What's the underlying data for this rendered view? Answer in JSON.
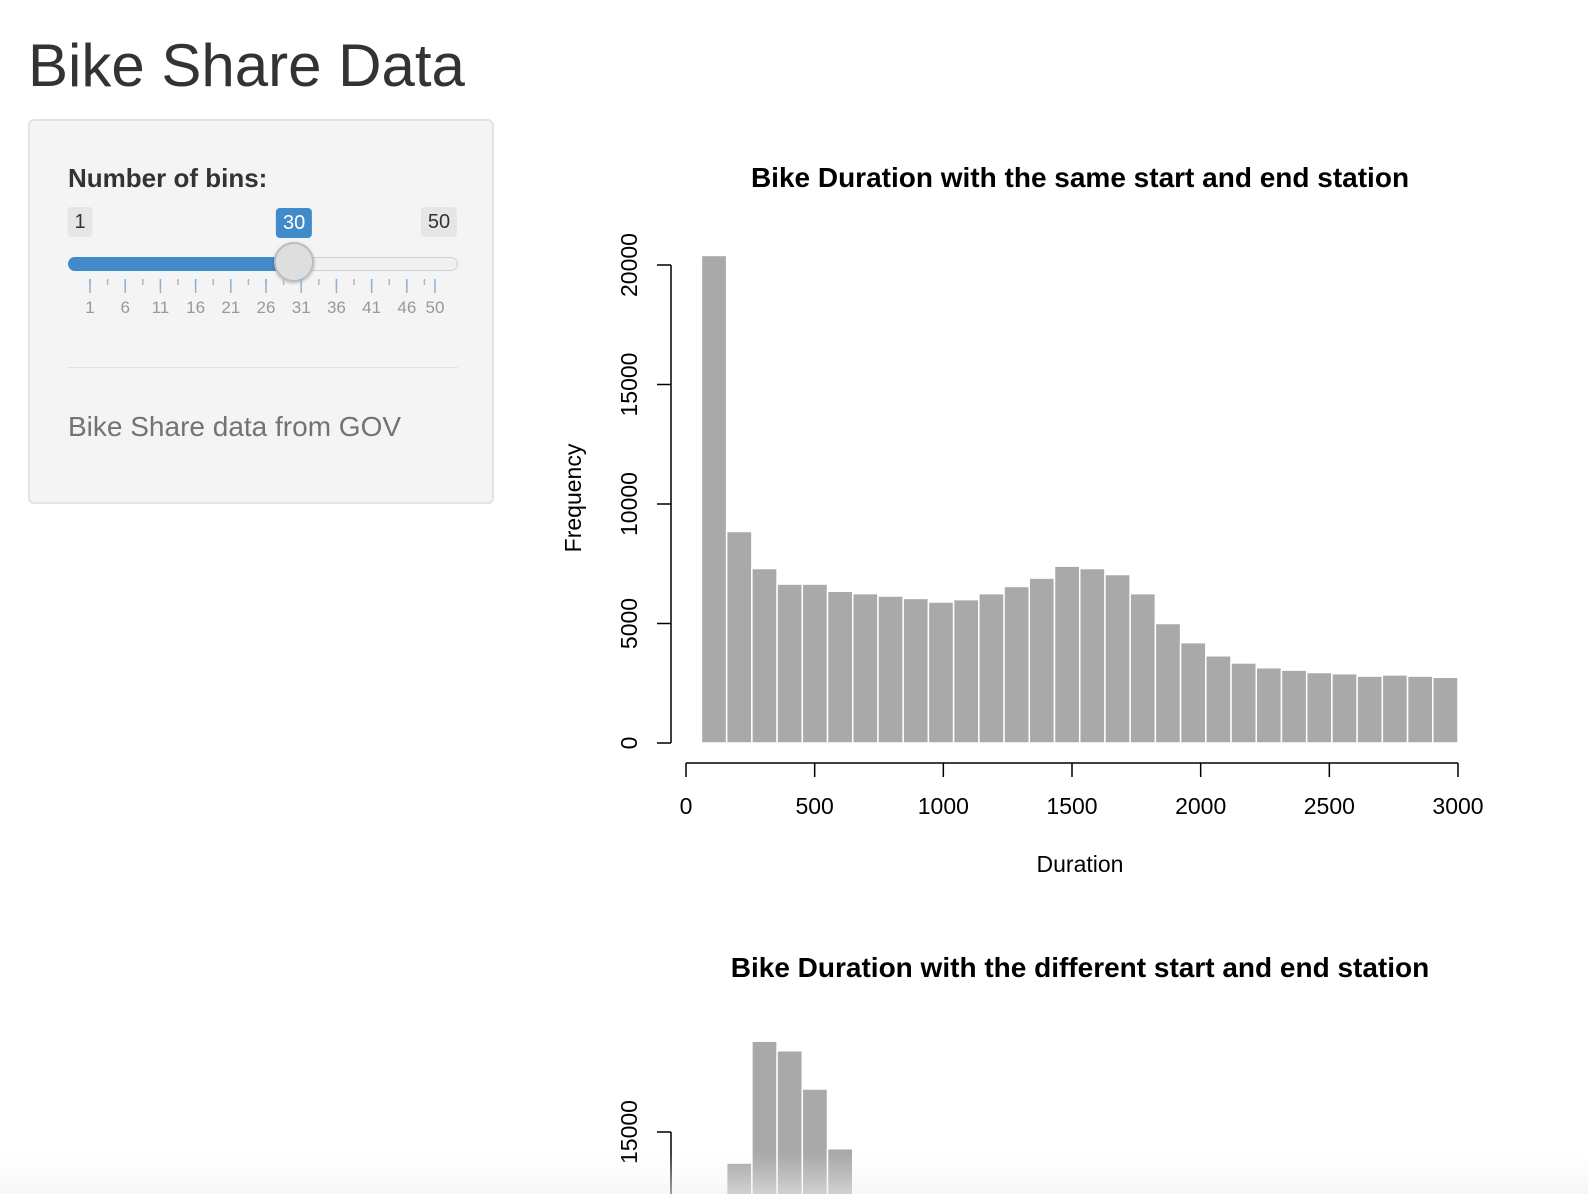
{
  "app": {
    "title": "Bike Share Data"
  },
  "sidebar": {
    "slider": {
      "label": "Number of bins:",
      "min": "1",
      "max": "50",
      "value": "30",
      "value_num": 30,
      "min_num": 1,
      "max_num": 50,
      "grid_labels": [
        "1",
        "6",
        "11",
        "16",
        "21",
        "26",
        "31",
        "36",
        "41",
        "46",
        "50"
      ]
    },
    "help_text": "Bike Share data from GOV"
  },
  "colors": {
    "accent": "#428bca",
    "bar_fill": "#a9a9a9",
    "bar_border": "#ffffff"
  },
  "chart_data": [
    {
      "type": "bar",
      "title": "Bike Duration with the same start and end station",
      "xlabel": "Duration",
      "ylabel": "Frequency",
      "xlim": [
        0,
        3000
      ],
      "ylim": [
        0,
        20000
      ],
      "xticks": [
        0,
        500,
        1000,
        1500,
        2000,
        2500,
        3000
      ],
      "yticks": [
        0,
        5000,
        10000,
        15000,
        20000
      ],
      "bin_width": 98,
      "bins_start": [
        60,
        158,
        256,
        354,
        452,
        550,
        648,
        746,
        844,
        942,
        1040,
        1138,
        1236,
        1334,
        1432,
        1530,
        1628,
        1726,
        1824,
        1922,
        2020,
        2118,
        2216,
        2314,
        2412,
        2510,
        2608,
        2706,
        2804,
        2902
      ],
      "values": [
        20400,
        8850,
        7300,
        6650,
        6650,
        6350,
        6250,
        6150,
        6050,
        5900,
        6000,
        6250,
        6550,
        6900,
        7400,
        7300,
        7050,
        6250,
        5000,
        4200,
        3650,
        3350,
        3150,
        3050,
        2950,
        2900,
        2800,
        2850,
        2800,
        2750
      ],
      "grid": false,
      "legend": "none"
    },
    {
      "type": "bar",
      "title": "Bike Duration with the different start and end station",
      "xlabel": "",
      "ylabel": "",
      "yticks": [
        15000
      ],
      "ylim_visible": [
        13000,
        20000
      ],
      "bin_width": 98,
      "bins_start": [
        60,
        158,
        256,
        354,
        452,
        550
      ],
      "values": [
        0,
        13700,
        18800,
        18400,
        16800,
        14300
      ],
      "grid": false,
      "legend": "none"
    }
  ]
}
